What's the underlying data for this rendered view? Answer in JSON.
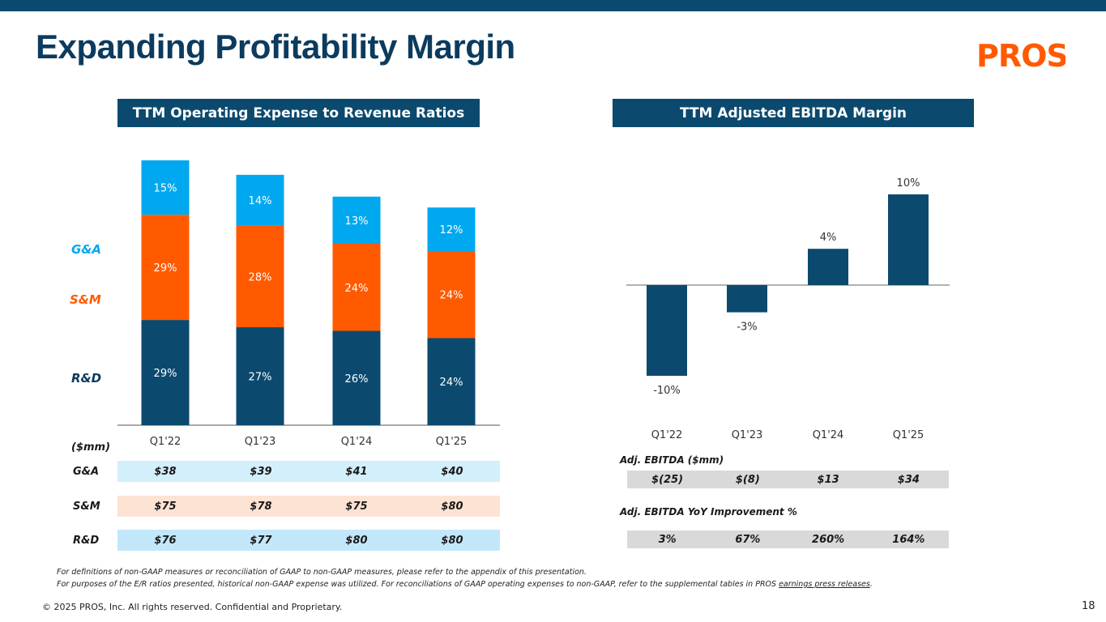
{
  "title": "Expanding Profitability Margin",
  "logo_text": "PROS",
  "colors": {
    "navy": "#0b4a6e",
    "orange": "#ff5a00",
    "lightblue": "#00a8f0",
    "brand_text": "#0b3b5e"
  },
  "left": {
    "header": "TTM Operating Expense to Revenue Ratios",
    "legend": {
      "ga": "G&A",
      "sm": "S&M",
      "rd": "R&D"
    },
    "mm_label": "($mm)",
    "table": [
      {
        "label": "G&A",
        "values": [
          "$38",
          "$39",
          "$41",
          "$40"
        ]
      },
      {
        "label": "S&M",
        "values": [
          "$75",
          "$78",
          "$75",
          "$80"
        ]
      },
      {
        "label": "R&D",
        "values": [
          "$76",
          "$77",
          "$80",
          "$80"
        ]
      }
    ]
  },
  "right": {
    "header": "TTM Adjusted EBITDA Margin",
    "ebitda_label": "Adj. EBITDA ($mm)",
    "ebitda_values": [
      "$(25)",
      "$(8)",
      "$13",
      "$34"
    ],
    "yoy_label": "Adj. EBITDA YoY Improvement %",
    "yoy_values": [
      "3%",
      "67%",
      "260%",
      "164%"
    ]
  },
  "chart_data": [
    {
      "type": "bar",
      "stacked": true,
      "title": "TTM Operating Expense to Revenue Ratios",
      "categories": [
        "Q1'22",
        "Q1'23",
        "Q1'24",
        "Q1'25"
      ],
      "series": [
        {
          "name": "R&D",
          "values": [
            29,
            27,
            26,
            24
          ],
          "labels": [
            "29%",
            "27%",
            "26%",
            "24%"
          ],
          "color": "#0b4a6e"
        },
        {
          "name": "S&M",
          "values": [
            29,
            28,
            24,
            24
          ],
          "labels": [
            "29%",
            "28%",
            "24%",
            "24%"
          ],
          "color": "#ff5a00"
        },
        {
          "name": "G&A",
          "values": [
            15,
            14,
            13,
            12
          ],
          "labels": [
            "15%",
            "14%",
            "13%",
            "12%"
          ],
          "color": "#00a8f0"
        }
      ]
    },
    {
      "type": "bar",
      "title": "TTM Adjusted EBITDA Margin",
      "categories": [
        "Q1'22",
        "Q1'23",
        "Q1'24",
        "Q1'25"
      ],
      "values": [
        -10,
        -3,
        4,
        10
      ],
      "labels": [
        "-10%",
        "-3%",
        "4%",
        "10%"
      ],
      "color": "#0b4a6e"
    }
  ],
  "footnotes": {
    "line1": "For definitions of non-GAAP measures or reconciliation of GAAP to non-GAAP measures, please refer to the appendix of this presentation.",
    "line2": "For purposes of the E/R ratios presented, historical non-GAAP expense was utilized. For reconciliations of GAAP operating expenses to non-GAAP, refer to the supplemental tables in PROS ",
    "link": "earnings press releases",
    "line2_end": "."
  },
  "copyright": "© 2025 PROS, Inc. All rights reserved. Confidential and Proprietary.",
  "page_number": "18"
}
